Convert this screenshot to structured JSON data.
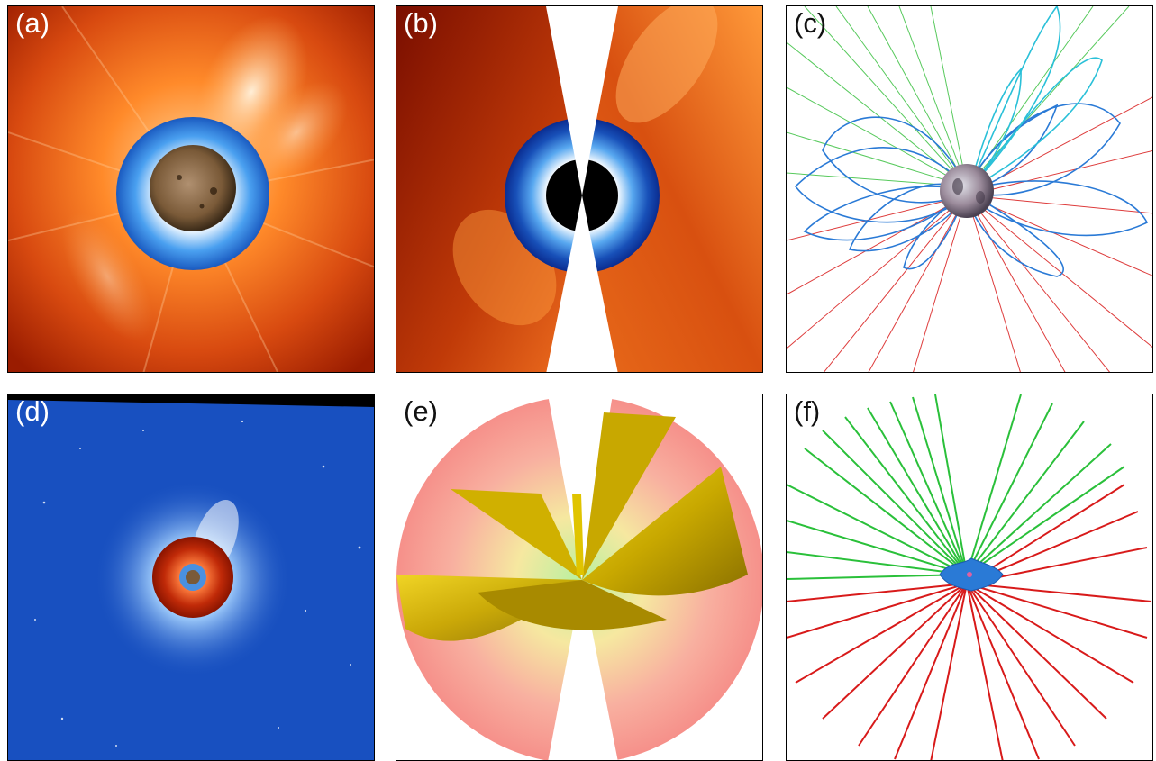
{
  "panels": [
    {
      "id": "a",
      "label": "(a)"
    },
    {
      "id": "b",
      "label": "(b)"
    },
    {
      "id": "c",
      "label": "(c)"
    },
    {
      "id": "d",
      "label": "(d)"
    },
    {
      "id": "e",
      "label": "(e)"
    },
    {
      "id": "f",
      "label": "(f)"
    }
  ],
  "colors": {
    "corona_red": "#b52a00",
    "corona_orange": "#ff8a2a",
    "inner_blue": "#1a63c8",
    "sun_brown": "#8a6a42",
    "field_line_blue": "#2a7ad6",
    "open_field_green": "#2ac03a",
    "open_field_red": "#d81a1a",
    "background_blue": "#1850c0",
    "isosurface_yellow": "#d8b800",
    "density_pink": "#f6908a"
  }
}
